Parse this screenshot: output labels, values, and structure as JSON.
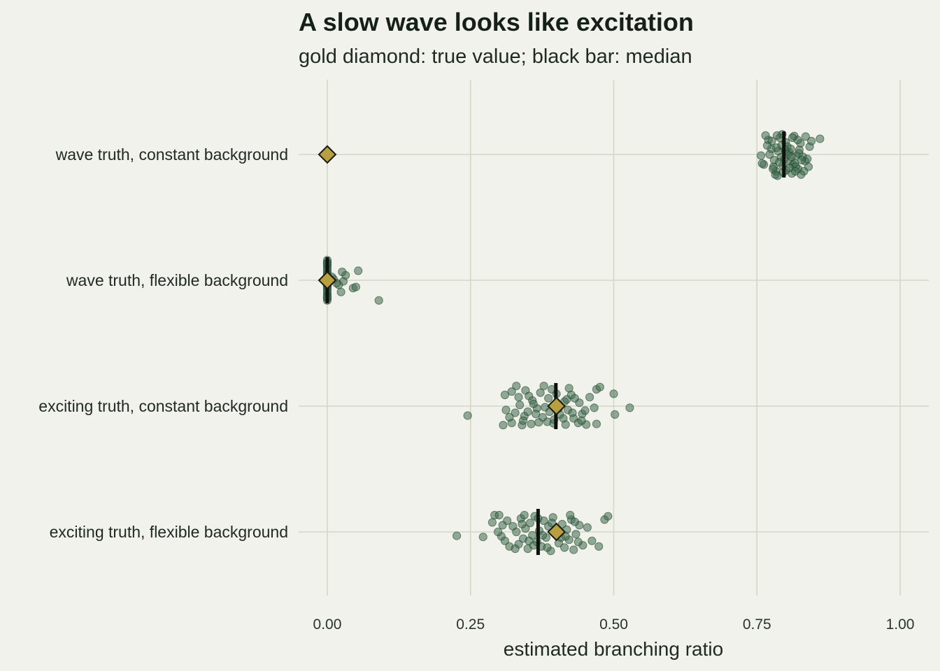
{
  "chart_data": {
    "type": "scatter",
    "title": "A slow wave looks like excitation",
    "subtitle": "gold diamond: true value; black bar: median",
    "xlabel": "estimated branching ratio",
    "ylabel": "",
    "xlim": [
      -0.05,
      1.05
    ],
    "x_ticks": [
      0.0,
      0.25,
      0.5,
      0.75,
      1.0
    ],
    "x_tick_labels": [
      "0.00",
      "0.25",
      "0.50",
      "0.75",
      "1.00"
    ],
    "grid": true,
    "legend": "none",
    "categories": [
      "wave truth, constant background",
      "wave truth, flexible background",
      "exciting truth, constant background",
      "exciting truth, flexible background"
    ],
    "true_values": [
      0.0,
      0.0,
      0.4,
      0.4
    ],
    "medians": [
      0.797,
      0.0,
      0.399,
      0.368
    ],
    "colors": {
      "points": "#3d6b4c",
      "diamond": "#b89f40",
      "median": "#0e120f",
      "grid": "#d5d6c6"
    },
    "series": [
      {
        "category": "wave truth, constant background",
        "points": [
          {
            "x": 0.762,
            "j": 0.18
          },
          {
            "x": 0.775,
            "j": -0.1
          },
          {
            "x": 0.783,
            "j": 0.3
          },
          {
            "x": 0.792,
            "j": 0.05
          },
          {
            "x": 0.8,
            "j": -0.22
          },
          {
            "x": 0.808,
            "j": 0.12
          },
          {
            "x": 0.815,
            "j": -0.33
          },
          {
            "x": 0.822,
            "j": 0.26
          },
          {
            "x": 0.77,
            "j": -0.26
          },
          {
            "x": 0.787,
            "j": -0.06
          },
          {
            "x": 0.795,
            "j": 0.2
          },
          {
            "x": 0.803,
            "j": -0.14
          },
          {
            "x": 0.811,
            "j": 0.34
          },
          {
            "x": 0.819,
            "j": 0.02
          },
          {
            "x": 0.826,
            "j": -0.2
          },
          {
            "x": 0.834,
            "j": 0.12
          },
          {
            "x": 0.842,
            "j": -0.14
          },
          {
            "x": 0.86,
            "j": -0.28
          },
          {
            "x": 0.757,
            "j": 0.02
          },
          {
            "x": 0.779,
            "j": 0.22
          },
          {
            "x": 0.79,
            "j": -0.3
          },
          {
            "x": 0.798,
            "j": 0.08
          },
          {
            "x": 0.806,
            "j": -0.04
          },
          {
            "x": 0.813,
            "j": 0.18
          },
          {
            "x": 0.821,
            "j": -0.26
          },
          {
            "x": 0.83,
            "j": 0.04
          },
          {
            "x": 0.838,
            "j": 0.08
          },
          {
            "x": 0.765,
            "j": -0.34
          },
          {
            "x": 0.78,
            "j": 0.1
          },
          {
            "x": 0.786,
            "j": 0.38
          },
          {
            "x": 0.793,
            "j": -0.16
          },
          {
            "x": 0.801,
            "j": 0.28
          },
          {
            "x": 0.809,
            "j": -0.1
          },
          {
            "x": 0.816,
            "j": 0.16
          },
          {
            "x": 0.824,
            "j": -0.08
          },
          {
            "x": 0.832,
            "j": 0.3
          },
          {
            "x": 0.845,
            "j": -0.24
          },
          {
            "x": 0.772,
            "j": 0.0
          },
          {
            "x": 0.784,
            "j": -0.12
          },
          {
            "x": 0.796,
            "j": 0.32
          },
          {
            "x": 0.804,
            "j": 0.0
          },
          {
            "x": 0.812,
            "j": -0.3
          },
          {
            "x": 0.818,
            "j": 0.22
          },
          {
            "x": 0.827,
            "j": 0.36
          },
          {
            "x": 0.776,
            "j": -0.24
          },
          {
            "x": 0.789,
            "j": 0.14
          },
          {
            "x": 0.799,
            "j": -0.08
          },
          {
            "x": 0.807,
            "j": 0.24
          },
          {
            "x": 0.823,
            "j": -0.02
          },
          {
            "x": 0.835,
            "j": -0.32
          },
          {
            "x": 0.759,
            "j": 0.16
          },
          {
            "x": 0.782,
            "j": 0.36
          },
          {
            "x": 0.794,
            "j": -0.36
          },
          {
            "x": 0.81,
            "j": 0.04
          },
          {
            "x": 0.828,
            "j": 0.1
          },
          {
            "x": 0.768,
            "j": -0.16
          },
          {
            "x": 0.785,
            "j": -0.34
          },
          {
            "x": 0.817,
            "j": 0.3
          },
          {
            "x": 0.84,
            "j": 0.22
          },
          {
            "x": 0.778,
            "j": 0.26
          }
        ]
      },
      {
        "category": "wave truth, flexible background",
        "points": [
          {
            "x": 0.0,
            "j": 0.36
          },
          {
            "x": 0.0,
            "j": 0.32
          },
          {
            "x": 0.0,
            "j": 0.28
          },
          {
            "x": 0.0,
            "j": 0.24
          },
          {
            "x": 0.0,
            "j": 0.2
          },
          {
            "x": 0.0,
            "j": 0.16
          },
          {
            "x": 0.0,
            "j": 0.12
          },
          {
            "x": 0.0,
            "j": 0.08
          },
          {
            "x": 0.0,
            "j": 0.04
          },
          {
            "x": 0.0,
            "j": 0.0
          },
          {
            "x": 0.0,
            "j": -0.04
          },
          {
            "x": 0.0,
            "j": -0.08
          },
          {
            "x": 0.0,
            "j": -0.12
          },
          {
            "x": 0.0,
            "j": -0.16
          },
          {
            "x": 0.0,
            "j": -0.2
          },
          {
            "x": 0.0,
            "j": -0.24
          },
          {
            "x": 0.0,
            "j": -0.28
          },
          {
            "x": 0.0,
            "j": -0.32
          },
          {
            "x": 0.0,
            "j": -0.36
          },
          {
            "x": 0.0,
            "j": 0.3
          },
          {
            "x": 0.0,
            "j": -0.3
          },
          {
            "x": 0.0,
            "j": 0.1
          },
          {
            "x": 0.0,
            "j": -0.1
          },
          {
            "x": 0.09,
            "j": 0.36
          },
          {
            "x": 0.024,
            "j": 0.21
          },
          {
            "x": 0.045,
            "j": 0.14
          },
          {
            "x": 0.05,
            "j": 0.12
          },
          {
            "x": 0.02,
            "j": 0.08
          },
          {
            "x": 0.028,
            "j": 0.02
          },
          {
            "x": 0.011,
            "j": -0.02
          },
          {
            "x": 0.032,
            "j": -0.09
          },
          {
            "x": 0.026,
            "j": -0.15
          },
          {
            "x": 0.054,
            "j": -0.17
          },
          {
            "x": 0.016,
            "j": 0.05
          },
          {
            "x": 0.008,
            "j": -0.06
          }
        ]
      },
      {
        "category": "exciting truth, constant background",
        "points": [
          {
            "x": 0.245,
            "j": 0.17
          },
          {
            "x": 0.307,
            "j": 0.34
          },
          {
            "x": 0.322,
            "j": 0.3
          },
          {
            "x": 0.34,
            "j": 0.34
          },
          {
            "x": 0.356,
            "j": 0.32
          },
          {
            "x": 0.369,
            "j": 0.29
          },
          {
            "x": 0.384,
            "j": 0.28
          },
          {
            "x": 0.395,
            "j": 0.31
          },
          {
            "x": 0.416,
            "j": 0.33
          },
          {
            "x": 0.438,
            "j": 0.3
          },
          {
            "x": 0.452,
            "j": 0.33
          },
          {
            "x": 0.47,
            "j": 0.32
          },
          {
            "x": 0.502,
            "j": 0.15
          },
          {
            "x": 0.528,
            "j": 0.03
          },
          {
            "x": 0.312,
            "j": 0.07
          },
          {
            "x": 0.328,
            "j": 0.12
          },
          {
            "x": 0.344,
            "j": 0.18
          },
          {
            "x": 0.35,
            "j": 0.1
          },
          {
            "x": 0.366,
            "j": 0.04
          },
          {
            "x": 0.376,
            "j": 0.2
          },
          {
            "x": 0.388,
            "j": 0.1
          },
          {
            "x": 0.406,
            "j": 0.15
          },
          {
            "x": 0.42,
            "j": 0.07
          },
          {
            "x": 0.43,
            "j": 0.22
          },
          {
            "x": 0.445,
            "j": 0.14
          },
          {
            "x": 0.466,
            "j": 0.03
          },
          {
            "x": 0.31,
            "j": -0.2
          },
          {
            "x": 0.322,
            "j": -0.26
          },
          {
            "x": 0.334,
            "j": -0.16
          },
          {
            "x": 0.346,
            "j": -0.28
          },
          {
            "x": 0.358,
            "j": -0.1
          },
          {
            "x": 0.372,
            "j": -0.24
          },
          {
            "x": 0.386,
            "j": -0.14
          },
          {
            "x": 0.4,
            "j": -0.22
          },
          {
            "x": 0.414,
            "j": -0.08
          },
          {
            "x": 0.426,
            "j": -0.2
          },
          {
            "x": 0.44,
            "j": -0.06
          },
          {
            "x": 0.47,
            "j": -0.3
          },
          {
            "x": 0.476,
            "j": -0.34
          },
          {
            "x": 0.5,
            "j": -0.22
          },
          {
            "x": 0.33,
            "j": -0.36
          },
          {
            "x": 0.36,
            "j": -0.04
          },
          {
            "x": 0.38,
            "j": 0.02
          },
          {
            "x": 0.412,
            "j": 0.22
          },
          {
            "x": 0.432,
            "j": -0.14
          },
          {
            "x": 0.45,
            "j": 0.08
          },
          {
            "x": 0.342,
            "j": 0.26
          },
          {
            "x": 0.392,
            "j": -0.3
          },
          {
            "x": 0.422,
            "j": -0.32
          },
          {
            "x": 0.364,
            "j": 0.14
          },
          {
            "x": 0.404,
            "j": 0.04
          },
          {
            "x": 0.336,
            "j": -0.02
          },
          {
            "x": 0.458,
            "j": -0.16
          },
          {
            "x": 0.318,
            "j": 0.2
          },
          {
            "x": 0.396,
            "j": 0.24
          },
          {
            "x": 0.428,
            "j": 0.12
          },
          {
            "x": 0.352,
            "j": -0.18
          },
          {
            "x": 0.378,
            "j": -0.36
          },
          {
            "x": 0.418,
            "j": -0.12
          },
          {
            "x": 0.444,
            "j": 0.26
          }
        ]
      },
      {
        "category": "exciting truth, flexible background",
        "points": [
          {
            "x": 0.226,
            "j": 0.07
          },
          {
            "x": 0.272,
            "j": 0.09
          },
          {
            "x": 0.288,
            "j": -0.17
          },
          {
            "x": 0.292,
            "j": -0.3
          },
          {
            "x": 0.3,
            "j": -0.3
          },
          {
            "x": 0.304,
            "j": 0.08
          },
          {
            "x": 0.31,
            "j": 0.16
          },
          {
            "x": 0.318,
            "j": 0.26
          },
          {
            "x": 0.324,
            "j": -0.1
          },
          {
            "x": 0.33,
            "j": 0.0
          },
          {
            "x": 0.334,
            "j": 0.22
          },
          {
            "x": 0.338,
            "j": -0.24
          },
          {
            "x": 0.342,
            "j": 0.12
          },
          {
            "x": 0.346,
            "j": -0.06
          },
          {
            "x": 0.35,
            "j": 0.3
          },
          {
            "x": 0.354,
            "j": -0.16
          },
          {
            "x": 0.358,
            "j": 0.06
          },
          {
            "x": 0.362,
            "j": -0.28
          },
          {
            "x": 0.366,
            "j": 0.18
          },
          {
            "x": 0.37,
            "j": -0.02
          },
          {
            "x": 0.374,
            "j": 0.26
          },
          {
            "x": 0.378,
            "j": -0.2
          },
          {
            "x": 0.382,
            "j": 0.1
          },
          {
            "x": 0.386,
            "j": -0.1
          },
          {
            "x": 0.39,
            "j": 0.34
          },
          {
            "x": 0.394,
            "j": -0.26
          },
          {
            "x": 0.398,
            "j": 0.02
          },
          {
            "x": 0.404,
            "j": 0.2
          },
          {
            "x": 0.41,
            "j": -0.14
          },
          {
            "x": 0.414,
            "j": 0.28
          },
          {
            "x": 0.418,
            "j": -0.04
          },
          {
            "x": 0.422,
            "j": 0.14
          },
          {
            "x": 0.426,
            "j": -0.22
          },
          {
            "x": 0.43,
            "j": 0.32
          },
          {
            "x": 0.434,
            "j": 0.04
          },
          {
            "x": 0.44,
            "j": -0.12
          },
          {
            "x": 0.446,
            "j": 0.24
          },
          {
            "x": 0.454,
            "j": -0.08
          },
          {
            "x": 0.462,
            "j": 0.16
          },
          {
            "x": 0.474,
            "j": 0.26
          },
          {
            "x": 0.484,
            "j": -0.22
          },
          {
            "x": 0.49,
            "j": -0.28
          },
          {
            "x": 0.314,
            "j": -0.2
          },
          {
            "x": 0.328,
            "j": 0.3
          },
          {
            "x": 0.344,
            "j": -0.3
          },
          {
            "x": 0.36,
            "j": 0.24
          },
          {
            "x": 0.376,
            "j": 0.06
          },
          {
            "x": 0.392,
            "j": -0.16
          },
          {
            "x": 0.408,
            "j": 0.1
          },
          {
            "x": 0.424,
            "j": -0.3
          },
          {
            "x": 0.438,
            "j": 0.18
          },
          {
            "x": 0.298,
            "j": 0.0
          },
          {
            "x": 0.306,
            "j": -0.12
          },
          {
            "x": 0.352,
            "j": 0.16
          },
          {
            "x": 0.368,
            "j": -0.24
          },
          {
            "x": 0.384,
            "j": 0.28
          },
          {
            "x": 0.4,
            "j": -0.06
          },
          {
            "x": 0.416,
            "j": 0.08
          },
          {
            "x": 0.432,
            "j": -0.18
          },
          {
            "x": 0.34,
            "j": -0.14
          }
        ]
      }
    ]
  }
}
